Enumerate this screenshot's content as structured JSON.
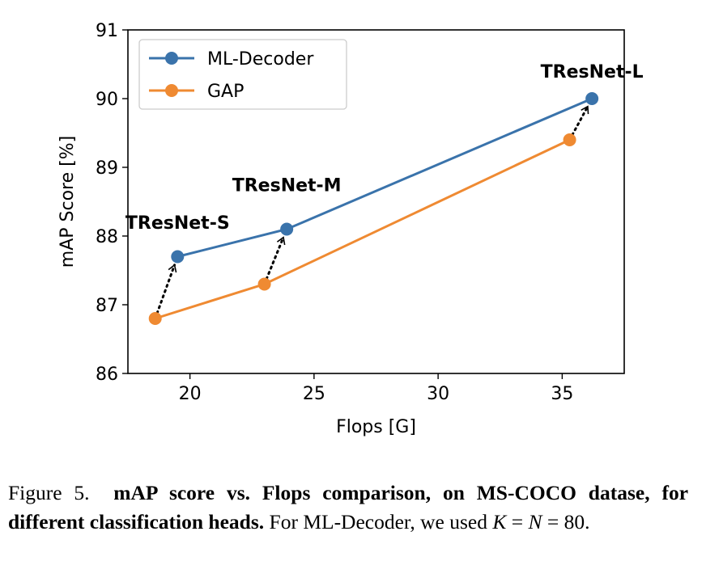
{
  "chart_data": {
    "type": "line",
    "xlabel": "Flops [G]",
    "ylabel": "mAP Score [%]",
    "xlim": [
      17.5,
      37.5
    ],
    "ylim": [
      86,
      91
    ],
    "xticks": [
      20,
      25,
      30,
      35
    ],
    "yticks": [
      86,
      87,
      88,
      89,
      90,
      91
    ],
    "grid": false,
    "legend_position": "top-left",
    "series": [
      {
        "name": "ML-Decoder",
        "color": "#3a73ab",
        "x": [
          19.5,
          23.9,
          36.2
        ],
        "y": [
          87.7,
          88.1,
          90.0
        ]
      },
      {
        "name": "GAP",
        "color": "#ef8a32",
        "x": [
          18.6,
          23.0,
          35.3
        ],
        "y": [
          86.8,
          87.3,
          89.4
        ]
      }
    ],
    "annotations": [
      {
        "text": "TResNet-S",
        "from": [
          18.6,
          86.8
        ],
        "to": [
          19.5,
          87.7
        ],
        "label_at": [
          19.5,
          88.2
        ]
      },
      {
        "text": "TResNet-M",
        "from": [
          23.0,
          87.3
        ],
        "to": [
          23.9,
          88.1
        ],
        "label_at": [
          23.9,
          88.75
        ]
      },
      {
        "text": "TResNet-L",
        "from": [
          35.3,
          89.4
        ],
        "to": [
          36.2,
          90.0
        ],
        "label_at": [
          36.2,
          90.4
        ]
      }
    ]
  },
  "caption": {
    "label": "Figure 5.",
    "bold_text": "mAP score vs.  Flops comparison, on MS-COCO datase, for different classification heads.",
    "text": "For ML-Decoder, we used",
    "math_k": "K",
    "math_eq1": " = ",
    "math_n": "N",
    "math_eq2": " = 80."
  }
}
